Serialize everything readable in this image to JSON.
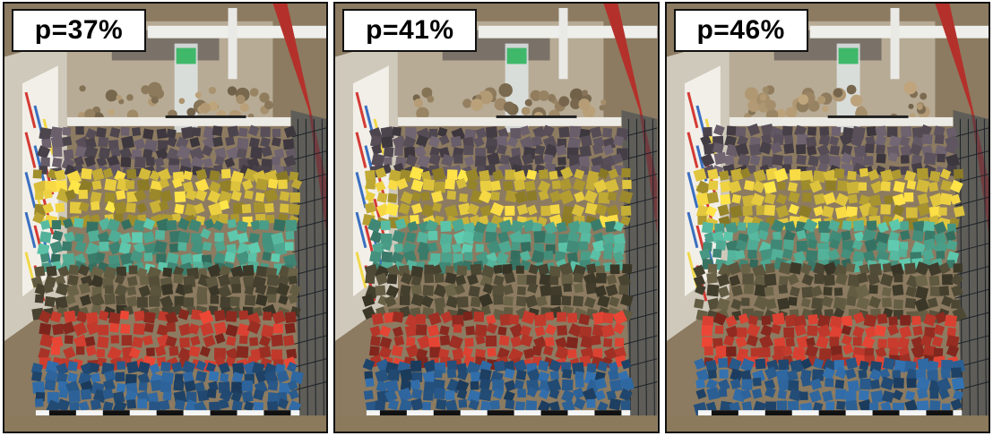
{
  "panels": [
    {
      "label": "p=37%",
      "porosity_percent": 37
    },
    {
      "label": "p=41%",
      "porosity_percent": 41
    },
    {
      "label": "p=46%",
      "porosity_percent": 46
    }
  ],
  "layer_colors": {
    "purple": "#5f5560",
    "yellow": "#d9bf3c",
    "teal": "#4fa891",
    "olive": "#59533c",
    "red": "#c23a2c",
    "blue": "#2b5e92"
  },
  "frame_colors": {
    "gravel": "#8c7b61",
    "flume_wall": "#cfc9bb",
    "red_rail": "#b4312b",
    "white_beam": "#eeeeea",
    "green_gauge": "#3fb86a"
  }
}
